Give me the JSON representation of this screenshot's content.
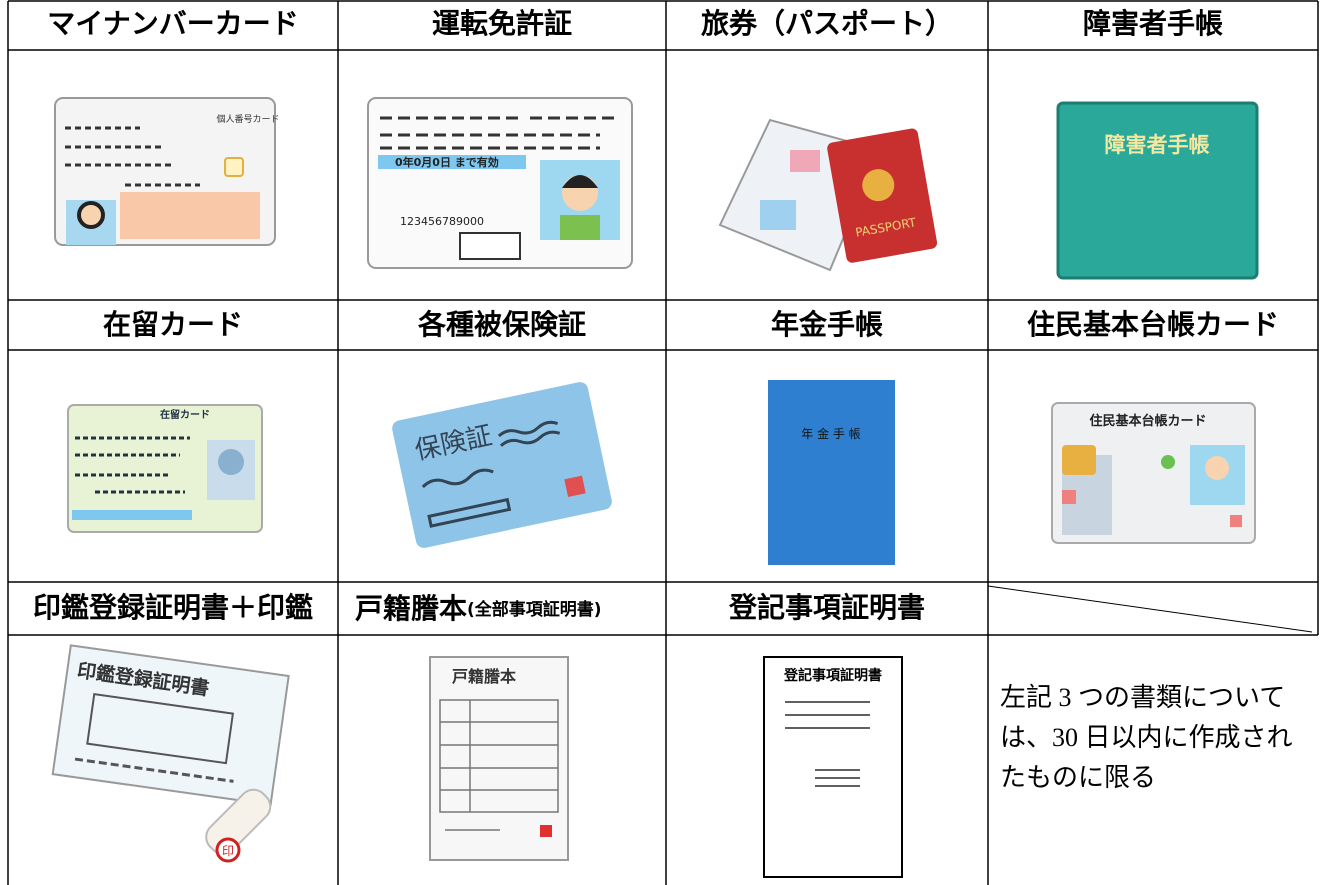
{
  "table": {
    "header_rows": [
      [
        "マイナンバーカード",
        "運転免許証",
        "旅券（パスポート）",
        "障害者手帳"
      ],
      [
        "在留カード",
        "各種被保険証",
        "年金手帳",
        "住民基本台帳カード"
      ],
      [
        "印鑑登録証明書＋印鑑",
        {
          "main": "戸籍謄本",
          "sub": "(全部事項証明書)"
        },
        "登記事項証明書"
      ]
    ],
    "note": "左記 3 つの書類については、30 日以内に作成されたものに限る"
  },
  "illustrations": {
    "mynumber": "個人番号カード",
    "license_valid": "0年0月0日 まで有効",
    "license_number": "123456789000",
    "passport": "PASSPORT",
    "disability_book": "障害者手帳",
    "residence_card": "在留カード",
    "insurance": "保険証",
    "pension_book": "年 金 手 帳",
    "juki_card": "住民基本台帳カード",
    "seal_cert": "印鑑登録証明書",
    "seal": "印",
    "koseki": "戸籍謄本",
    "registry": "登記事項証明書"
  }
}
